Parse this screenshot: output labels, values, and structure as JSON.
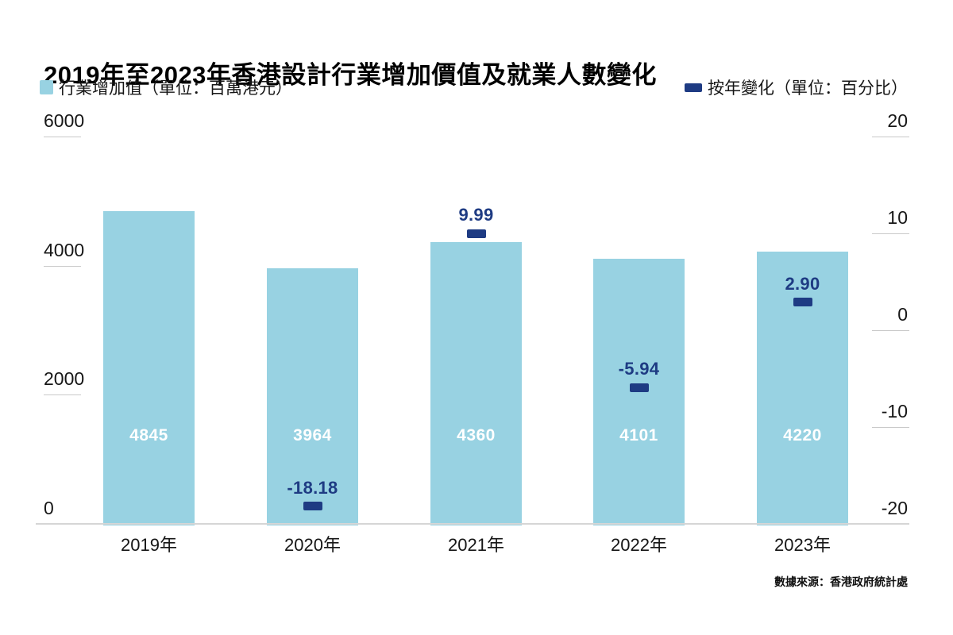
{
  "title": "2019年至2023年香港設計行業增加價值及就業人數變化",
  "legend": {
    "bars_label": "行業增加值（單位：百萬港元）",
    "markers_label": "按年變化（單位：百分比）"
  },
  "source": "數據來源：香港政府統計處",
  "colors": {
    "bar": "#98d2e2",
    "marker": "#1e3b83",
    "bar_value_text": "#ffffff",
    "axis_text": "#161616",
    "tick_line": "#c9c9c9",
    "baseline": "#d6d6d6"
  },
  "chart_data": {
    "type": "bar",
    "title": "2019年至2023年香港設計行業增加價值及就業人數變化",
    "categories": [
      "2019年",
      "2020年",
      "2021年",
      "2022年",
      "2023年"
    ],
    "series": [
      {
        "name": "行業增加值（單位：百萬港元）",
        "type": "bar",
        "axis": "left",
        "values": [
          4845,
          3964,
          4360,
          4101,
          4220
        ]
      },
      {
        "name": "按年變化（單位：百分比）",
        "type": "point",
        "axis": "right",
        "values": [
          null,
          -18.18,
          9.99,
          -5.94,
          2.9
        ]
      }
    ],
    "left_axis": {
      "ticks": [
        6000,
        4000,
        2000,
        0
      ],
      "range": [
        0,
        6000
      ]
    },
    "right_axis": {
      "ticks": [
        20,
        10,
        0,
        -10,
        -20
      ],
      "range": [
        -20,
        20
      ]
    },
    "grid": false,
    "legend_position": "top",
    "source": "數據來源：香港政府統計處"
  }
}
